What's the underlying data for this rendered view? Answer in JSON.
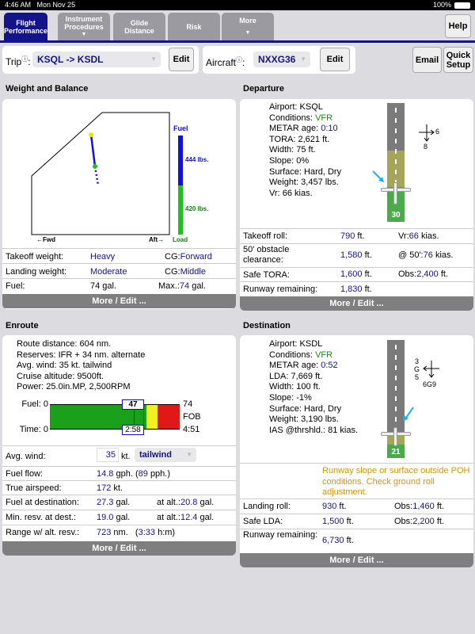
{
  "status": {
    "time": "4:46 AM",
    "date": "Mon Nov 25",
    "battery": "100%"
  },
  "tabs": [
    {
      "label1": "Flight",
      "label2": "Performance"
    },
    {
      "label1": "Instrument",
      "label2": "Procedures",
      "arrow": "▼"
    },
    {
      "label1": "Glide",
      "label2": "Distance"
    },
    {
      "label1": "Risk",
      "label2": ""
    },
    {
      "label1": "More",
      "label2": "",
      "arrow": "▼"
    }
  ],
  "help": "Help",
  "toolbar": {
    "trip_label": "Trip",
    "trip_value": "KSQL -> KSDL",
    "edit": "Edit",
    "aircraft_label": "Aircraft",
    "aircraft_value": "NXXG36",
    "email": "Email",
    "quick1": "Quick",
    "quick2": "Setup",
    "info": "ⓘ"
  },
  "wb": {
    "title": "Weight and Balance",
    "fuel": "Fuel",
    "fuel_lbs": "444 lbs.",
    "load_lbs": "420 lbs.",
    "load": "Load",
    "fwd": "←Fwd",
    "aft": "Aft→",
    "rows": [
      {
        "label": "Takeoff weight:",
        "value": "Heavy",
        "cg_label": "CG:",
        "cg": "Forward"
      },
      {
        "label": "Landing weight:",
        "value": "Moderate",
        "cg_label": "CG:",
        "cg": "Middle"
      }
    ],
    "fuel_label": "Fuel:",
    "fuel_value": "74 gal.",
    "max_label": "Max.:",
    "max_value": "74",
    "max_unit": "gal.",
    "more": "More / Edit ..."
  },
  "dep": {
    "title": "Departure",
    "lines": [
      [
        "Airport: ",
        "KSQL",
        ""
      ],
      [
        "Conditions: ",
        "VFR",
        "green"
      ],
      [
        "METAR age: ",
        "0:10",
        "blue"
      ],
      [
        "TORA: ",
        "2,621 ft.",
        ""
      ],
      [
        "Width: ",
        "75 ft.",
        ""
      ],
      [
        "Slope: ",
        "0%",
        ""
      ],
      [
        "Surface: ",
        "Hard, Dry",
        ""
      ],
      [
        "Weight: ",
        "3,457 lbs.",
        ""
      ],
      [
        "Vr: ",
        "66 kias.",
        ""
      ]
    ],
    "runway": "30",
    "wind_x": "6",
    "wind_y": "8",
    "rows": [
      {
        "label": "Takeoff roll:",
        "v": "790",
        "u": "ft.",
        "l2": "Vr:",
        "v2": "66",
        "u2": "kias."
      },
      {
        "label": "50' obstacle clearance:",
        "v": "1,580",
        "u": "ft.",
        "l2": "@ 50':",
        "v2": "76",
        "u2": "kias."
      },
      {
        "label": "Safe TORA:",
        "v": "1,600",
        "u": "ft.",
        "l2": "Obs:",
        "v2": "2,400",
        "u2": "ft."
      },
      {
        "label": "Runway remaining:",
        "v": "1,830",
        "u": "ft.",
        "l2": "",
        "v2": "",
        "u2": ""
      }
    ],
    "more": "More / Edit ..."
  },
  "enr": {
    "title": "Enroute",
    "lines": [
      "Route distance: 604 nm.",
      "Reserves: IFR + 34 nm. alternate",
      "Avg. wind: 35 kt. tailwind",
      "Cruise altitude: 9500ft.",
      "Power: 25.0in.MP, 2,500RPM"
    ],
    "fuel0": "Fuel: 0",
    "time0": "Time: 0",
    "fuel_mark": "47",
    "time_mark": "2:58",
    "fuel_max": "74",
    "fob": "FOB",
    "time_max": "4:51",
    "wind_label": "Avg. wind:",
    "wind_value": "35",
    "wind_unit": "kt.",
    "wind_dir": "tailwind",
    "rows": [
      {
        "label": "Fuel flow:",
        "v": "14.8",
        "u": "gph. (",
        "v2": "89",
        "u2": "pph.)"
      },
      {
        "label": "True airspeed:",
        "v": "172",
        "u": "kt."
      },
      {
        "label": "Fuel at destination:",
        "v": "27.3",
        "u": "gal.",
        "l3": "at alt.:",
        "v3": "20.8",
        "u3": "gal."
      },
      {
        "label": "Min. resv. at dest.:",
        "v": "19.0",
        "u": "gal.",
        "l3": "at alt.:",
        "v3": "12.4",
        "u3": "gal."
      },
      {
        "label": "Range w/ alt. resv.:",
        "v": "723",
        "u": "nm.   (",
        "v2": "3:33",
        "u2": "h:m)"
      }
    ],
    "more": "More / Edit ..."
  },
  "dest": {
    "title": "Destination",
    "lines": [
      [
        "Airport: ",
        "KSDL",
        ""
      ],
      [
        "Conditions: ",
        "VFR",
        "green"
      ],
      [
        "METAR age: ",
        "0:52",
        "blue"
      ],
      [
        "LDA: ",
        "7,669 ft.",
        ""
      ],
      [
        "Width: ",
        "100 ft.",
        ""
      ],
      [
        "Slope: ",
        "-1%",
        ""
      ],
      [
        "Surface: ",
        "Hard, Dry",
        ""
      ],
      [
        "Weight: ",
        "3,190 lbs.",
        ""
      ],
      [
        "IAS @thrshld.: ",
        "81 kias.",
        ""
      ]
    ],
    "runway": "21",
    "wind_a": "3",
    "wind_g": "G",
    "wind_b": "5",
    "wind_c": "6G9",
    "warning": "Runway slope or surface outside POH conditions. Check ground roll adjustment.",
    "rows": [
      {
        "label": "Landing roll:",
        "v": "930",
        "u": "ft.",
        "l2": "Obs:",
        "v2": "1,460",
        "u2": "ft."
      },
      {
        "label": "Safe LDA:",
        "v": "1,500",
        "u": "ft.",
        "l2": "Obs:",
        "v2": "2,200",
        "u2": "ft."
      },
      {
        "label": "Runway remaining:",
        "v": "6,730",
        "u": "ft.",
        "l2": "",
        "v2": "",
        "u2": ""
      }
    ],
    "more": "More / Edit ..."
  },
  "colors": {
    "nav": "#14148a",
    "value": "#14148a",
    "vfr": "#1a8a1a",
    "warning": "#d4950a",
    "fuel_green": "#1aa01a",
    "reserve_yellow": "#f0f020",
    "empty_red": "#e01818"
  }
}
